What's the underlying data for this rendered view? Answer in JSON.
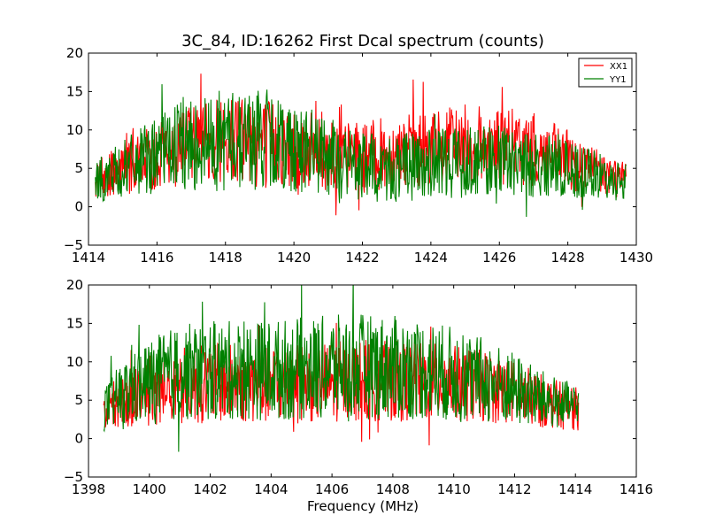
{
  "chart_data": [
    {
      "type": "line",
      "title": "3C_84, ID:16262 First Dcal spectrum (counts)",
      "xlabel": "",
      "ylabel": "",
      "xlim": [
        1414,
        1430
      ],
      "ylim": [
        -5,
        20
      ],
      "xticks": [
        "1414",
        "1416",
        "1418",
        "1420",
        "1422",
        "1424",
        "1426",
        "1428",
        "1430"
      ],
      "yticks": [
        "20",
        "15",
        "10",
        "5",
        "0",
        "−5"
      ],
      "legend": {
        "placement": "top-right",
        "entries": [
          "XX1",
          "YY1"
        ]
      },
      "grid": false,
      "x_range": [
        1414.2,
        1429.7
      ],
      "series": [
        {
          "name": "XX1",
          "color": "#ff0000",
          "x": [
            1414.2,
            1415,
            1416,
            1417,
            1418,
            1419,
            1420,
            1421,
            1422,
            1423,
            1424,
            1425,
            1426,
            1427,
            1428,
            1429,
            1429.7
          ],
          "mean": [
            3.4,
            4.8,
            6.5,
            7.8,
            8.4,
            8.5,
            7.8,
            6.6,
            6.4,
            7.2,
            7.8,
            8.2,
            8.0,
            7.4,
            6.0,
            4.4,
            3.6
          ],
          "amp": [
            2.6,
            3.5,
            4.5,
            5.5,
            6.0,
            6.0,
            5.4,
            4.8,
            4.6,
            4.8,
            5.0,
            5.2,
            5.1,
            4.8,
            4.0,
            3.0,
            2.6
          ]
        },
        {
          "name": "YY1",
          "color": "#008000",
          "x": [
            1414.2,
            1415,
            1416,
            1417,
            1418,
            1419,
            1420,
            1421,
            1422,
            1423,
            1424,
            1425,
            1426,
            1427,
            1428,
            1429,
            1429.7
          ],
          "mean": [
            3.3,
            4.8,
            6.8,
            8.2,
            8.7,
            8.8,
            8.0,
            6.4,
            5.0,
            5.0,
            5.5,
            6.0,
            5.9,
            5.4,
            4.8,
            3.9,
            3.3
          ],
          "amp": [
            2.7,
            3.8,
            5.0,
            6.2,
            6.7,
            6.8,
            6.2,
            5.2,
            4.6,
            4.5,
            4.6,
            4.8,
            4.7,
            4.4,
            3.8,
            3.0,
            2.6
          ]
        }
      ]
    },
    {
      "type": "line",
      "title": "",
      "xlabel": "Frequency (MHz)",
      "ylabel": "",
      "xlim": [
        1398,
        1416
      ],
      "ylim": [
        -5,
        20
      ],
      "xticks": [
        "1398",
        "1400",
        "1402",
        "1404",
        "1406",
        "1408",
        "1410",
        "1412",
        "1414",
        "1416"
      ],
      "yticks": [
        "20",
        "15",
        "10",
        "5",
        "0",
        "−5"
      ],
      "grid": false,
      "x_range": [
        1398.5,
        1414.1
      ],
      "series": [
        {
          "name": "",
          "color": "#ff0000",
          "x": [
            1398.5,
            1399,
            1400,
            1401,
            1402,
            1403,
            1404,
            1405,
            1406,
            1407,
            1408,
            1409,
            1410,
            1411,
            1412,
            1413,
            1414.1
          ],
          "mean": [
            3.6,
            4.8,
            6.2,
            7.0,
            7.2,
            7.2,
            7.0,
            7.2,
            7.4,
            7.6,
            7.5,
            7.4,
            7.2,
            6.8,
            6.0,
            4.8,
            3.8
          ],
          "amp": [
            2.6,
            3.4,
            4.6,
            5.0,
            5.2,
            5.2,
            5.2,
            5.2,
            5.3,
            5.4,
            5.3,
            5.2,
            5.0,
            4.7,
            4.2,
            3.4,
            2.8
          ]
        },
        {
          "name": "",
          "color": "#008000",
          "x": [
            1398.5,
            1399,
            1400,
            1401,
            1402,
            1403,
            1404,
            1405,
            1406,
            1407,
            1408,
            1409,
            1410,
            1411,
            1412,
            1413,
            1414.1
          ],
          "mean": [
            3.8,
            5.5,
            7.4,
            8.6,
            8.8,
            8.9,
            8.9,
            9.1,
            9.3,
            9.4,
            9.2,
            9.0,
            8.4,
            7.6,
            6.4,
            5.0,
            4.0
          ],
          "amp": [
            2.8,
            4.0,
            5.6,
            6.3,
            6.5,
            6.5,
            6.6,
            6.7,
            6.8,
            6.9,
            6.8,
            6.6,
            6.2,
            5.6,
            4.8,
            3.7,
            2.9
          ]
        }
      ]
    }
  ]
}
